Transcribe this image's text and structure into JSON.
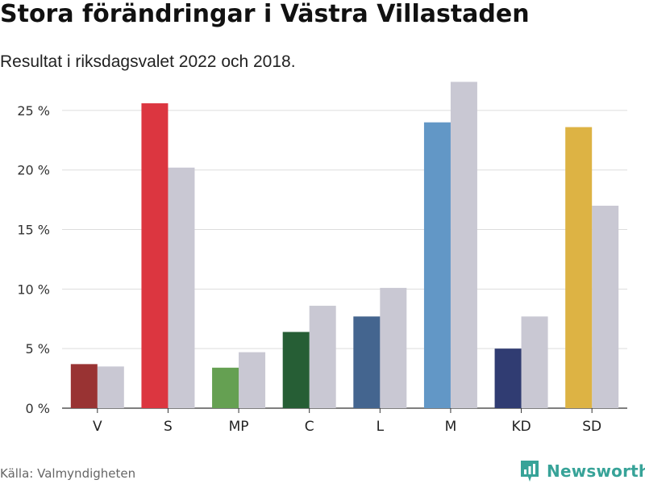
{
  "chart_data": {
    "type": "bar",
    "title": "Stora förändringar i Västra Villastaden",
    "subtitle": "Resultat i riksdagsvalet 2022 och 2018.",
    "xlabel": "",
    "ylabel": "",
    "ylim": [
      0,
      27.5
    ],
    "yticks": [
      0,
      5,
      10,
      15,
      20,
      25
    ],
    "ytick_labels": [
      "0 %",
      "5 %",
      "10 %",
      "15 %",
      "20 %",
      "25 %"
    ],
    "grid": true,
    "categories": [
      "V",
      "S",
      "MP",
      "C",
      "L",
      "M",
      "KD",
      "SD"
    ],
    "series": [
      {
        "name": "2022",
        "values": [
          3.7,
          25.6,
          3.4,
          6.4,
          7.7,
          24.0,
          5.0,
          23.6
        ],
        "colors": [
          "#993333",
          "#dc3640",
          "#65a052",
          "#265e35",
          "#44658f",
          "#6297c6",
          "#303c72",
          "#ddb344"
        ]
      },
      {
        "name": "2018",
        "values": [
          3.5,
          20.2,
          4.7,
          8.6,
          10.1,
          27.4,
          7.7,
          17.0
        ],
        "color": "#c9c8d3"
      }
    ]
  },
  "source": "Källa: Valmyndigheten",
  "brand": {
    "name": "Newsworthy",
    "icon": "newsworthy-logo-icon",
    "color": "#37a398"
  }
}
